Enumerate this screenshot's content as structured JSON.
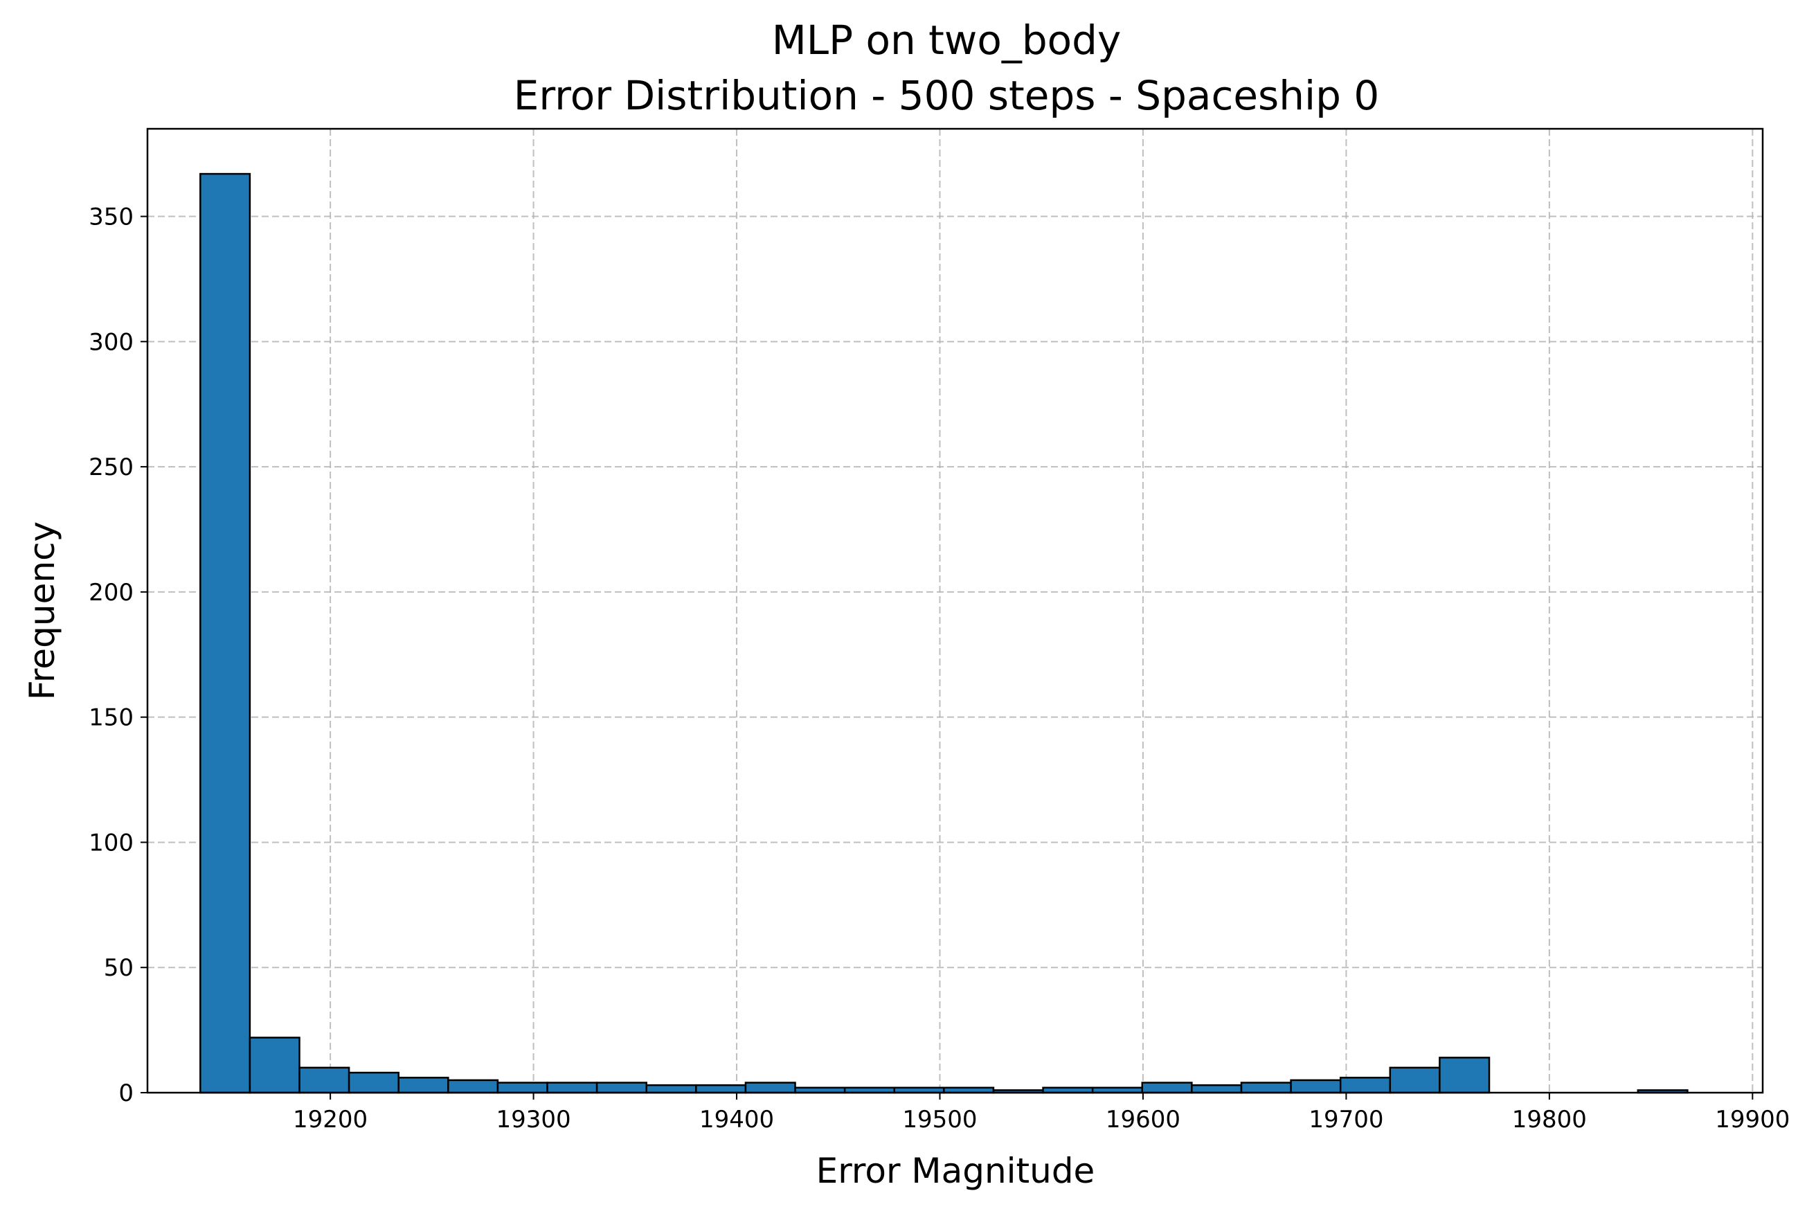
{
  "chart_data": {
    "type": "bar",
    "title": "MLP on two_body",
    "subtitle": "Error Distribution - 500 steps - Spaceship 0",
    "xlabel": "Error Magnitude",
    "ylabel": "Frequency",
    "xlim": [
      19110,
      19905
    ],
    "ylim": [
      0,
      385
    ],
    "xticks": [
      "19200",
      "19300",
      "19400",
      "19500",
      "19600",
      "19700",
      "19800",
      "19900"
    ],
    "yticks": [
      "0",
      "50",
      "100",
      "150",
      "200",
      "250",
      "300",
      "350"
    ],
    "grid": true,
    "bar_color": "#1f77b4",
    "edge_color": "#000000",
    "bin_start": 19136,
    "bin_width": 24.4,
    "values": [
      367,
      22,
      10,
      8,
      6,
      5,
      4,
      4,
      4,
      3,
      3,
      4,
      2,
      2,
      2,
      2,
      1,
      2,
      2,
      4,
      3,
      4,
      5,
      6,
      10,
      14,
      0,
      0,
      0,
      1
    ]
  }
}
